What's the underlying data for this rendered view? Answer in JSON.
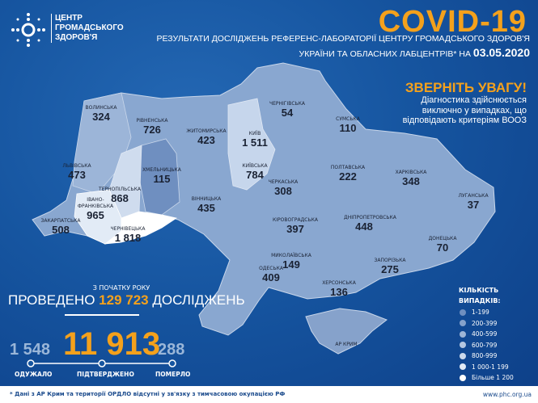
{
  "logo": {
    "lines": [
      "ЦЕНТР",
      "ГРОМАДСЬКОГО",
      "ЗДОРОВ'Я"
    ]
  },
  "header": {
    "title": "COVID-19",
    "subtitle_line1": "РЕЗУЛЬТАТИ ДОСЛІДЖЕНЬ РЕФЕРЕНС-ЛАБОРАТОРІЇ ЦЕНТРУ ГРОМАДСЬКОГО ЗДОРОВ'Я",
    "subtitle_line2": "УКРАЇНИ ТА ОБЛАСНИХ ЛАБЦЕНТРІВ* НА",
    "date": "03.05.2020"
  },
  "warning": {
    "title": "ЗВЕРНІТЬ УВАГУ!",
    "body": "Діагностика здійснюється виключно у випадках, що відповідають критеріям ВООЗ"
  },
  "regions": [
    {
      "name": "ВОЛИНСЬКА",
      "cases": "324"
    },
    {
      "name": "РІВНЕНСЬКА",
      "cases": "726"
    },
    {
      "name": "ЖИТОМИРСЬКА",
      "cases": "423"
    },
    {
      "name": "КИЇВ",
      "cases": "1 511"
    },
    {
      "name": "КИЇВСЬКА",
      "cases": "784"
    },
    {
      "name": "ЧЕРНІГІВСЬКА",
      "cases": "54"
    },
    {
      "name": "СУМСЬКА",
      "cases": "110"
    },
    {
      "name": "ЛЬВІВСЬКА",
      "cases": "473"
    },
    {
      "name": "ТЕРНОПІЛЬСЬКА",
      "cases": "868"
    },
    {
      "name": "ХМЕЛЬНИЦЬКА",
      "cases": "115"
    },
    {
      "name": "ВІННИЦЬКА",
      "cases": "435"
    },
    {
      "name": "ЧЕРКАСЬКА",
      "cases": "308"
    },
    {
      "name": "ПОЛТАВСЬКА",
      "cases": "222"
    },
    {
      "name": "ХАРКІВСЬКА",
      "cases": "348"
    },
    {
      "name": "ЛУГАНСЬКА",
      "cases": "37"
    },
    {
      "name": "ІВАНО-ФРАНКІВСЬКА",
      "cases": "965"
    },
    {
      "name": "ЗАКАРПАТСЬКА",
      "cases": "508"
    },
    {
      "name": "ЧЕРНІВЕЦЬКА",
      "cases": "1 818"
    },
    {
      "name": "КІРОВОГРАДСЬКА",
      "cases": "397"
    },
    {
      "name": "ДНІПРОПЕТРОВСЬКА",
      "cases": "448"
    },
    {
      "name": "ДОНЕЦЬКА",
      "cases": "70"
    },
    {
      "name": "ОДЕСЬКА",
      "cases": "409"
    },
    {
      "name": "МИКОЛАЇВСЬКА",
      "cases": "149"
    },
    {
      "name": "ХЕРСОНСЬКА",
      "cases": "136"
    },
    {
      "name": "ЗАПОРІЗЬКА",
      "cases": "275"
    },
    {
      "name": "АР КРИМ",
      "cases": ""
    }
  ],
  "stats": {
    "since": "З ПОЧАТКУ РОКУ",
    "tests_prefix": "ПРОВЕДЕНО",
    "tests_value": "129 723",
    "tests_suffix": "ДОСЛІДЖЕНЬ",
    "recovered": "1 548",
    "confirmed": "11 913",
    "deaths": "288",
    "recovered_label": "ОДУЖАЛО",
    "confirmed_label": "ПІДТВЕРДЖЕНО",
    "deaths_label": "ПОМЕРЛО"
  },
  "legend": {
    "title1": "КІЛЬКІСТЬ",
    "title2": "ВИПАДКІВ:",
    "items": [
      {
        "label": "1-199",
        "color": "#6f8fbf"
      },
      {
        "label": "200-399",
        "color": "#86a2cb"
      },
      {
        "label": "400-599",
        "color": "#9db5d6"
      },
      {
        "label": "600-799",
        "color": "#b4c7e1"
      },
      {
        "label": "800-999",
        "color": "#cbd9ec"
      },
      {
        "label": "1 000-1 199",
        "color": "#e2ebf6"
      },
      {
        "label": "Більше 1 200",
        "color": "#ffffff"
      }
    ]
  },
  "footer": {
    "note": "* Дані з АР Крим та території ОРДЛО відсутні у зв'язку з тимчасовою окупацією РФ",
    "url": "www.phc.org.ua"
  }
}
